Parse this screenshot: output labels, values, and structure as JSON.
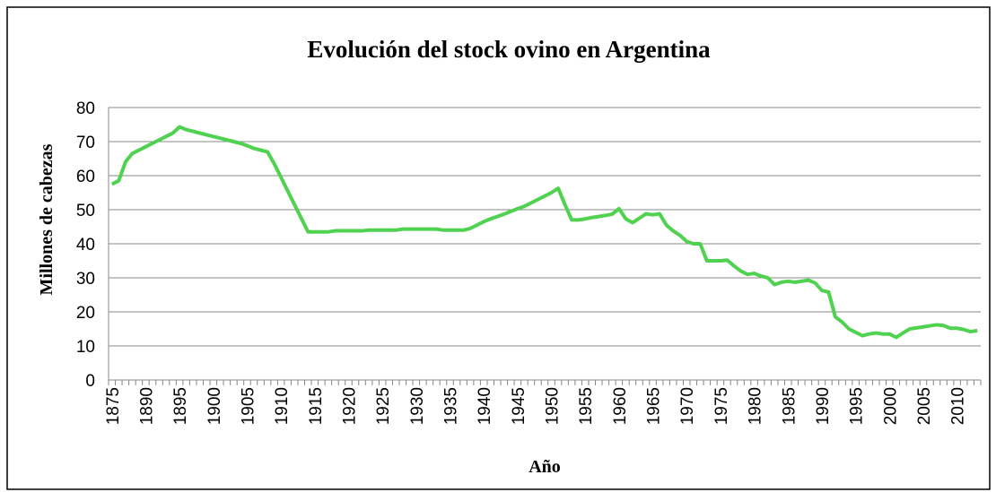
{
  "chart_data": {
    "type": "line",
    "title": "Evolución del stock ovino en Argentina",
    "x_label": "Año",
    "y_label": "Millones  de  cabezas",
    "categories": [
      "1875",
      null,
      null,
      null,
      null,
      "1890",
      null,
      null,
      null,
      null,
      "1895",
      null,
      null,
      null,
      null,
      "1900",
      null,
      null,
      null,
      null,
      "1905",
      null,
      null,
      null,
      null,
      "1910",
      null,
      null,
      null,
      null,
      "1915",
      null,
      null,
      null,
      null,
      "1920",
      null,
      null,
      null,
      null,
      "1925",
      null,
      null,
      null,
      null,
      "1930",
      null,
      null,
      null,
      null,
      "1935",
      null,
      null,
      null,
      null,
      "1940",
      null,
      null,
      null,
      null,
      "1945",
      null,
      null,
      null,
      null,
      "1950",
      null,
      null,
      null,
      null,
      "1955",
      null,
      null,
      null,
      null,
      "1960",
      null,
      null,
      null,
      null,
      "1965",
      null,
      null,
      null,
      null,
      "1970",
      null,
      null,
      null,
      null,
      "1975",
      null,
      null,
      null,
      null,
      "1980",
      null,
      null,
      null,
      null,
      "1985",
      null,
      null,
      null,
      null,
      "1990",
      null,
      null,
      null,
      null,
      "1995",
      null,
      null,
      null,
      null,
      "2000",
      null,
      null,
      null,
      null,
      "2005",
      null,
      null,
      null,
      null,
      "2010",
      null,
      null,
      null
    ],
    "series": [
      {
        "name": "Stock ovino",
        "color": "#4fd24f",
        "values": [
          57.5,
          58.5,
          64,
          66.5,
          67.5,
          68.5,
          69.5,
          70.5,
          71.5,
          72.5,
          74.3,
          73.5,
          73,
          72.5,
          72,
          71.5,
          71,
          70.5,
          70,
          69.5,
          68.8,
          68,
          67.5,
          67,
          63.5,
          59.5,
          55.5,
          51.5,
          47.5,
          43.5,
          43.5,
          43.5,
          43.5,
          43.8,
          43.8,
          43.8,
          43.8,
          43.8,
          44,
          44,
          44,
          44,
          44,
          44.3,
          44.3,
          44.3,
          44.3,
          44.3,
          44.3,
          44,
          44,
          44,
          44,
          44.5,
          45.5,
          46.5,
          47.3,
          48,
          48.7,
          49.5,
          50.3,
          51,
          52,
          53,
          54,
          55,
          56.3,
          51.5,
          47,
          47,
          47.3,
          47.7,
          48,
          48.3,
          48.7,
          50.3,
          47.3,
          46.2,
          47.5,
          48.8,
          48.5,
          48.8,
          45.5,
          43.8,
          42.5,
          40.7,
          40,
          40,
          35,
          35,
          35,
          35.2,
          33.5,
          32,
          31,
          31.3,
          30.5,
          30,
          28,
          28.7,
          29,
          28.7,
          29,
          29.3,
          28.5,
          26.3,
          25.8,
          18.5,
          17,
          15,
          14,
          13,
          13.5,
          13.8,
          13.5,
          13.5,
          12.5,
          13.8,
          15,
          15.3,
          15.6,
          15.9,
          16.2,
          16,
          15.2,
          15.2,
          14.8,
          14.2,
          14.5
        ]
      }
    ],
    "ylim": [
      0,
      80
    ],
    "yticks": [
      0,
      10,
      20,
      30,
      40,
      50,
      60,
      70,
      80
    ],
    "grid": true
  }
}
